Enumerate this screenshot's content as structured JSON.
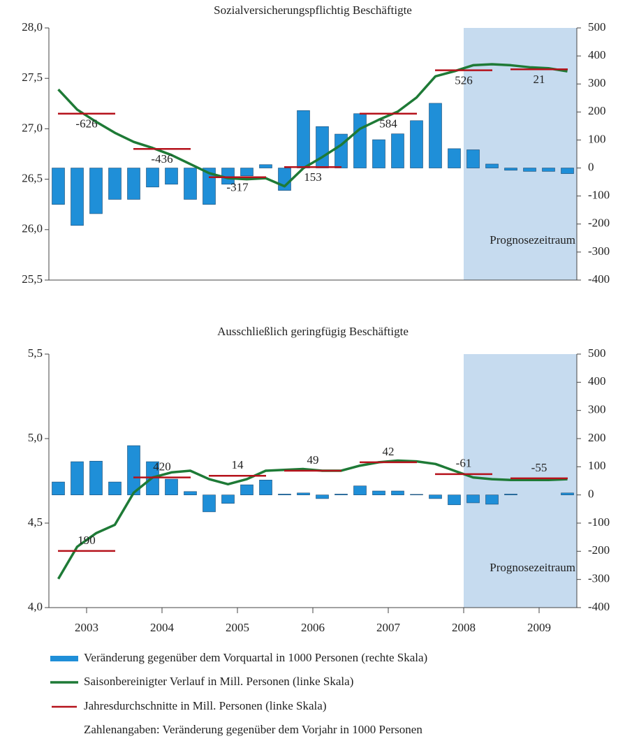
{
  "chart_data": [
    {
      "type": "combo",
      "title": "Sozialversicherungspflichtig Beschäftigte",
      "x": [
        2003.125,
        2003.375,
        2003.625,
        2003.875,
        2004.125,
        2004.375,
        2004.625,
        2004.875,
        2005.125,
        2005.375,
        2005.625,
        2005.875,
        2006.125,
        2006.375,
        2006.625,
        2006.875,
        2007.125,
        2007.375,
        2007.625,
        2007.875,
        2008.125,
        2008.375,
        2008.625,
        2008.875,
        2009.125,
        2009.375,
        2009.625,
        2009.875
      ],
      "xlim": [
        2003,
        2010
      ],
      "ylim": [
        25.5,
        28.0
      ],
      "yticks": [
        {
          "value": 25.5,
          "label": "25,5"
        },
        {
          "value": 26.0,
          "label": "26,0"
        },
        {
          "value": 26.5,
          "label": "26,5"
        },
        {
          "value": 27.0,
          "label": "27,0"
        },
        {
          "value": 27.5,
          "label": "27,5"
        },
        {
          "value": 28.0,
          "label": "28,0"
        }
      ],
      "y2lim": [
        -400,
        500
      ],
      "y2ticks": [
        -400,
        -300,
        -200,
        -100,
        0,
        100,
        200,
        300,
        400,
        500
      ],
      "forecast": {
        "from": 2008.5,
        "to": 2010,
        "label": "Prognosezeitraum",
        "color": "#c6dbef"
      },
      "series": [
        {
          "name": "Veränderung gegenüber dem Vorquartal in 1000 Personen (rechte Skala)",
          "kind": "bar",
          "axis": "y2",
          "color": "#1f8fd8",
          "values": [
            -130,
            -205,
            -163,
            -112,
            -112,
            -68,
            -58,
            -112,
            -130,
            -58,
            -28,
            12,
            -80,
            205,
            148,
            121,
            194,
            101,
            122,
            169,
            231,
            69,
            65,
            14,
            -8,
            -12,
            -12,
            -20
          ]
        },
        {
          "name": "Saisonbereinigter Verlauf in Mill. Personen (linke Skala)",
          "kind": "line",
          "color": "#1e7a36",
          "values": [
            27.39,
            27.19,
            27.07,
            26.96,
            26.87,
            26.81,
            26.74,
            26.65,
            26.56,
            26.51,
            26.5,
            26.51,
            26.43,
            26.61,
            26.72,
            26.84,
            27.0,
            27.09,
            27.17,
            27.31,
            27.52,
            27.57,
            27.63,
            27.64,
            27.63,
            27.61,
            27.6,
            27.57
          ]
        },
        {
          "name": "Jahresdurchschnitte in Mill. Personen (linke Skala)",
          "kind": "annual",
          "color": "#b5121b",
          "x": [
            2003.5,
            2004.5,
            2005.5,
            2006.5,
            2007.5,
            2008.5,
            2009.5
          ],
          "values": [
            27.15,
            26.8,
            26.52,
            26.62,
            27.15,
            27.58,
            27.59
          ],
          "changes": [
            -626,
            -436,
            -317,
            153,
            584,
            526,
            21
          ]
        }
      ]
    },
    {
      "type": "combo",
      "title": "Ausschließlich geringfügig Beschäftigte",
      "x": [
        2003.125,
        2003.375,
        2003.625,
        2003.875,
        2004.125,
        2004.375,
        2004.625,
        2004.875,
        2005.125,
        2005.375,
        2005.625,
        2005.875,
        2006.125,
        2006.375,
        2006.625,
        2006.875,
        2007.125,
        2007.375,
        2007.625,
        2007.875,
        2008.125,
        2008.375,
        2008.625,
        2008.875,
        2009.125,
        2009.375,
        2009.625,
        2009.875
      ],
      "xlim": [
        2003,
        2010
      ],
      "xticks": [
        {
          "value": 2003.5,
          "label": "2003"
        },
        {
          "value": 2004.5,
          "label": "2004"
        },
        {
          "value": 2005.5,
          "label": "2005"
        },
        {
          "value": 2006.5,
          "label": "2006"
        },
        {
          "value": 2007.5,
          "label": "2007"
        },
        {
          "value": 2008.5,
          "label": "2008"
        },
        {
          "value": 2009.5,
          "label": "2009"
        }
      ],
      "ylim": [
        4.0,
        5.5
      ],
      "yticks": [
        {
          "value": 4.0,
          "label": "4,0"
        },
        {
          "value": 4.5,
          "label": "4,5"
        },
        {
          "value": 5.0,
          "label": "5,0"
        },
        {
          "value": 5.5,
          "label": "5,5"
        }
      ],
      "y2lim": [
        -400,
        500
      ],
      "y2ticks": [
        -400,
        -300,
        -200,
        -100,
        0,
        100,
        200,
        300,
        400,
        500
      ],
      "forecast": {
        "from": 2008.5,
        "to": 2010,
        "label": "Prognosezeitraum",
        "color": "#c6dbef"
      },
      "series": [
        {
          "kind": "bar",
          "axis": "y2",
          "color": "#1f8fd8",
          "values": [
            46,
            118,
            120,
            46,
            175,
            118,
            56,
            12,
            -60,
            -30,
            36,
            53,
            3,
            7,
            -13,
            3,
            32,
            14,
            14,
            2,
            -13,
            -35,
            -28,
            -33,
            3,
            0,
            0,
            7
          ]
        },
        {
          "kind": "line",
          "color": "#1e7a36",
          "values": [
            4.17,
            4.36,
            4.44,
            4.49,
            4.68,
            4.77,
            4.8,
            4.81,
            4.76,
            4.73,
            4.76,
            4.81,
            4.815,
            4.82,
            4.81,
            4.81,
            4.84,
            4.86,
            4.87,
            4.865,
            4.85,
            4.81,
            4.77,
            4.76,
            4.755,
            4.755,
            4.755,
            4.76
          ]
        },
        {
          "kind": "annual",
          "color": "#b5121b",
          "x": [
            2003.5,
            2004.5,
            2005.5,
            2006.5,
            2007.5,
            2008.5,
            2009.5
          ],
          "values": [
            4.335,
            4.77,
            4.78,
            4.81,
            4.86,
            4.79,
            4.765
          ],
          "changes": [
            190,
            420,
            14,
            49,
            42,
            -61,
            -55
          ]
        }
      ]
    }
  ],
  "legend_note": "Zahlenangaben: Veränderung gegenüber dem Vorjahr in 1000 Personen"
}
